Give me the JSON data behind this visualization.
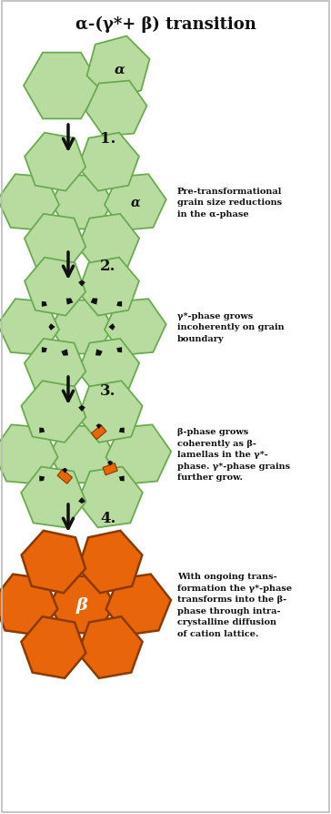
{
  "title": "α-(γ*+ β) transition",
  "title_fontsize": 13,
  "bg_color": "#FFFFFF",
  "border_color": "#BBBBBB",
  "green_face": "#B8DCA0",
  "green_edge": "#6AAA50",
  "orange_face": "#E8650A",
  "orange_edge": "#8B3A00",
  "black_color": "#111111",
  "alpha_label": "α",
  "beta_label": "β",
  "stage_labels": [
    "1.",
    "2.",
    "3.",
    "4."
  ],
  "annotations": [
    "Pre-transformational\ngrain size reductions\nin the α-phase",
    "γ*-phase grows\nincoherently on grain\nboundary",
    "β-phase grows\ncoherently as β-\nlamellas in the γ*-\nphase. γ*-phase grains\nfurther grow.",
    "With ongoing trans-\nformation the γ*-phase\ntransforms into the β-\nphase through intra-\ncrystalline diffusion\nof cation lattice."
  ],
  "fig_w": 3.64,
  "fig_h": 8.95,
  "dpi": 100
}
